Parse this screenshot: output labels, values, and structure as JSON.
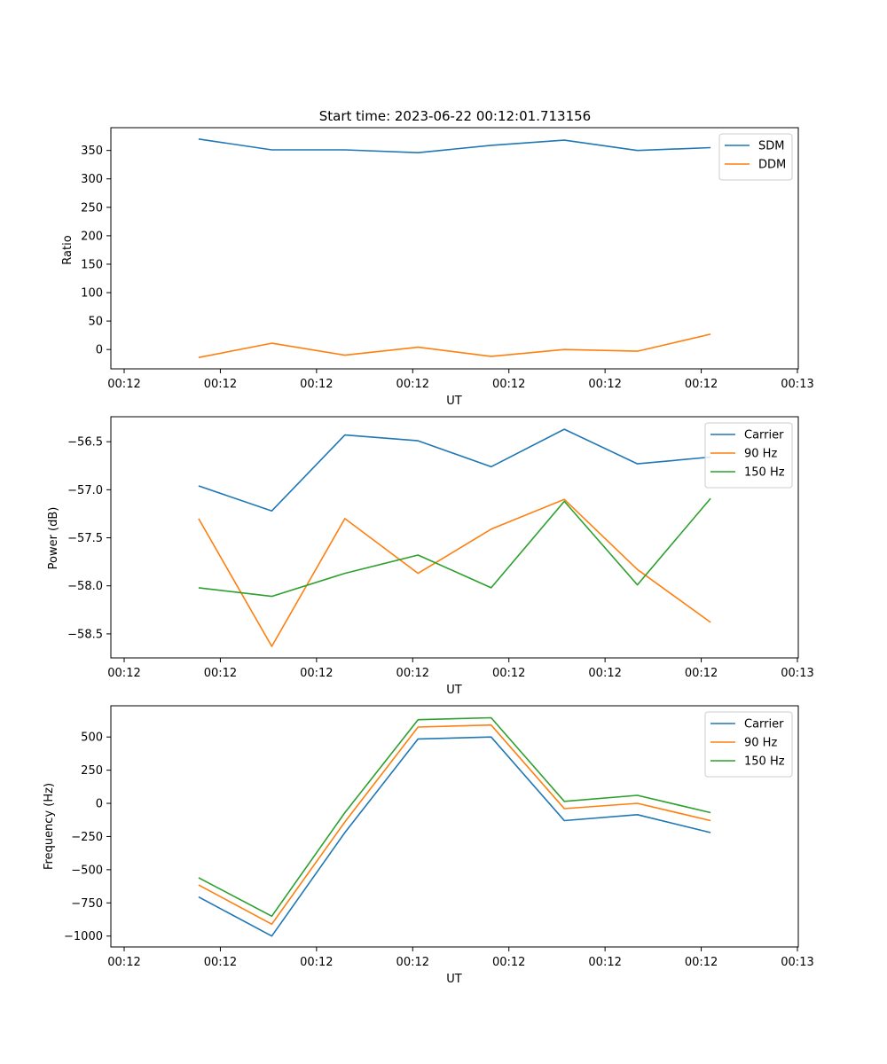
{
  "figure": {
    "title": "Start time: 2023-06-22 00:12:01.713156"
  },
  "chart_data": [
    {
      "type": "line",
      "xlabel": "UT",
      "ylabel": "Ratio",
      "x_tick_labels": [
        "00:12",
        "00:12",
        "00:12",
        "00:12",
        "00:12",
        "00:12",
        "00:12",
        "00:13"
      ],
      "x": [
        1,
        2,
        3,
        4,
        5,
        6,
        7,
        8
      ],
      "xlim": [
        -0.2,
        9.2
      ],
      "ylim": [
        -34,
        390
      ],
      "y_ticks": [
        0,
        50,
        100,
        150,
        200,
        250,
        300,
        350
      ],
      "legend": "top-right",
      "series": [
        {
          "name": "SDM",
          "color": "#1f77b4",
          "values": [
            370,
            351,
            351,
            346,
            359,
            368,
            350,
            355
          ]
        },
        {
          "name": "DDM",
          "color": "#ff7f0e",
          "values": [
            -14,
            11,
            -10,
            4,
            -12,
            0,
            -3,
            27
          ]
        }
      ]
    },
    {
      "type": "line",
      "xlabel": "UT",
      "ylabel": "Power (dB)",
      "x_tick_labels": [
        "00:12",
        "00:12",
        "00:12",
        "00:12",
        "00:12",
        "00:12",
        "00:12",
        "00:13"
      ],
      "x": [
        1,
        2,
        3,
        4,
        5,
        6,
        7,
        8
      ],
      "xlim": [
        -0.2,
        9.2
      ],
      "ylim": [
        -58.75,
        -56.24
      ],
      "y_ticks": [
        -58.5,
        -58.0,
        -57.5,
        -57.0,
        -56.5
      ],
      "y_tick_labels": [
        "−58.5",
        "−58.0",
        "−57.5",
        "−57.0",
        "−56.5"
      ],
      "legend": "top-right",
      "series": [
        {
          "name": "Carrier",
          "color": "#1f77b4",
          "values": [
            -56.96,
            -57.22,
            -56.43,
            -56.49,
            -56.76,
            -56.37,
            -56.73,
            -56.66
          ]
        },
        {
          "name": "90 Hz",
          "color": "#ff7f0e",
          "values": [
            -57.3,
            -58.63,
            -57.3,
            -57.87,
            -57.41,
            -57.1,
            -57.83,
            -58.38
          ]
        },
        {
          "name": "150 Hz",
          "color": "#2ca02c",
          "values": [
            -58.02,
            -58.11,
            -57.87,
            -57.68,
            -58.02,
            -57.12,
            -57.99,
            -57.09
          ]
        }
      ]
    },
    {
      "type": "line",
      "xlabel": "UT",
      "ylabel": "Frequency (Hz)",
      "x_tick_labels": [
        "00:12",
        "00:12",
        "00:12",
        "00:12",
        "00:12",
        "00:12",
        "00:12",
        "00:13"
      ],
      "x": [
        1,
        2,
        3,
        4,
        5,
        6,
        7,
        8
      ],
      "xlim": [
        -0.2,
        9.2
      ],
      "ylim": [
        -1082,
        735
      ],
      "y_ticks": [
        -1000,
        -750,
        -500,
        -250,
        0,
        250,
        500
      ],
      "y_tick_labels": [
        "−1000",
        "−750",
        "−500",
        "−250",
        "0",
        "250",
        "500"
      ],
      "legend": "top-right",
      "series": [
        {
          "name": "Carrier",
          "color": "#1f77b4",
          "values": [
            -705,
            -1000,
            -220,
            485,
            500,
            -130,
            -85,
            -220
          ]
        },
        {
          "name": "90 Hz",
          "color": "#ff7f0e",
          "values": [
            -615,
            -910,
            -140,
            575,
            590,
            -40,
            0,
            -130
          ]
        },
        {
          "name": "150 Hz",
          "color": "#2ca02c",
          "values": [
            -560,
            -850,
            -70,
            630,
            645,
            15,
            60,
            -70
          ]
        }
      ]
    }
  ]
}
